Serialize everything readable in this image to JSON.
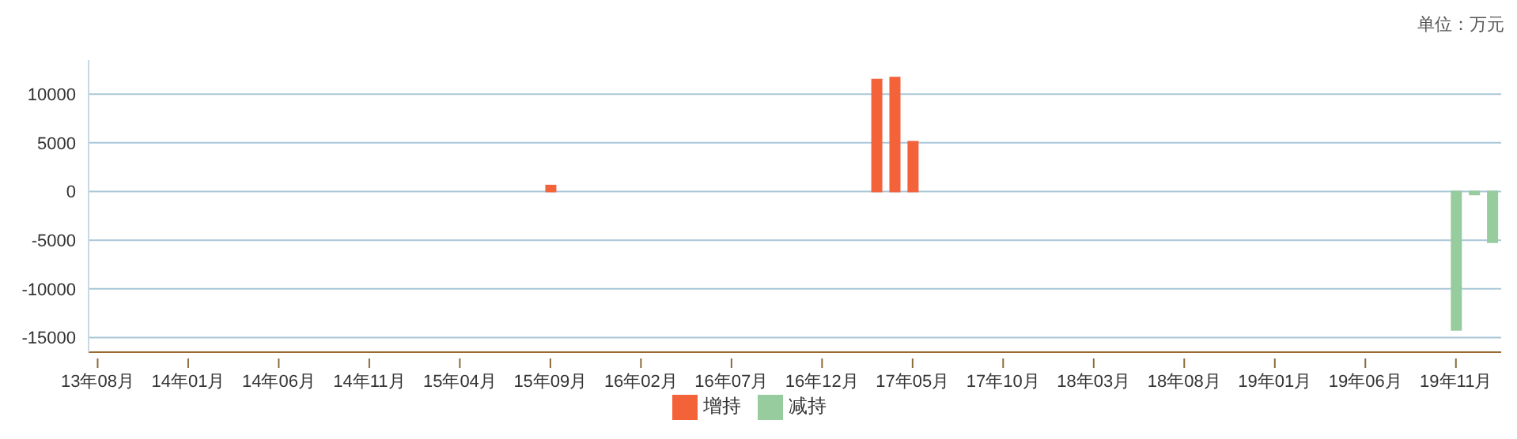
{
  "chart_data": {
    "type": "bar",
    "annotations": [
      "单位：万元"
    ],
    "categories": [
      "13年08月",
      null,
      null,
      null,
      null,
      "14年01月",
      null,
      null,
      null,
      null,
      "14年06月",
      null,
      null,
      null,
      null,
      "14年11月",
      null,
      null,
      null,
      null,
      "15年04月",
      null,
      null,
      null,
      null,
      "15年09月",
      null,
      null,
      null,
      null,
      "16年02月",
      null,
      null,
      null,
      null,
      "16年07月",
      null,
      null,
      null,
      null,
      "16年12月",
      null,
      null,
      null,
      null,
      "17年05月",
      null,
      null,
      null,
      null,
      "17年10月",
      null,
      null,
      null,
      null,
      "18年03月",
      null,
      null,
      null,
      null,
      "18年08月",
      null,
      null,
      null,
      null,
      "19年01月",
      null,
      null,
      null,
      null,
      "19年06月",
      null,
      null,
      null,
      null,
      "19年11月",
      null,
      null
    ],
    "series": [
      {
        "name": "增持",
        "color": "#f4623a",
        "values": [
          null,
          null,
          null,
          null,
          null,
          null,
          null,
          null,
          null,
          null,
          null,
          null,
          null,
          null,
          null,
          null,
          null,
          null,
          null,
          null,
          null,
          null,
          null,
          null,
          null,
          600,
          null,
          null,
          null,
          null,
          null,
          null,
          null,
          null,
          null,
          null,
          null,
          null,
          null,
          null,
          null,
          null,
          null,
          11500,
          11700,
          5100,
          null,
          null,
          null,
          null,
          null,
          null,
          null,
          null,
          null,
          null,
          null,
          null,
          null,
          null,
          null,
          null,
          null,
          null,
          null,
          null,
          null,
          null,
          null,
          null,
          null,
          null,
          null,
          null,
          null,
          null,
          null,
          null
        ]
      },
      {
        "name": "减持",
        "color": "#96cc9e",
        "values": [
          null,
          null,
          null,
          null,
          null,
          null,
          null,
          null,
          null,
          null,
          null,
          null,
          null,
          null,
          null,
          null,
          null,
          null,
          null,
          null,
          null,
          null,
          null,
          null,
          null,
          null,
          null,
          null,
          null,
          null,
          null,
          null,
          null,
          null,
          null,
          null,
          null,
          null,
          null,
          null,
          null,
          null,
          null,
          null,
          null,
          null,
          null,
          null,
          null,
          null,
          null,
          null,
          null,
          null,
          null,
          null,
          null,
          null,
          null,
          null,
          null,
          null,
          null,
          null,
          null,
          null,
          null,
          null,
          null,
          null,
          null,
          null,
          null,
          null,
          null,
          -14200,
          -300,
          -5200
        ]
      }
    ],
    "stacked": true,
    "ylim": [
      -16500,
      13500
    ],
    "yticks": [
      -15000,
      -10000,
      -5000,
      0,
      5000,
      10000
    ],
    "grid": "y",
    "legend": "bottom"
  }
}
